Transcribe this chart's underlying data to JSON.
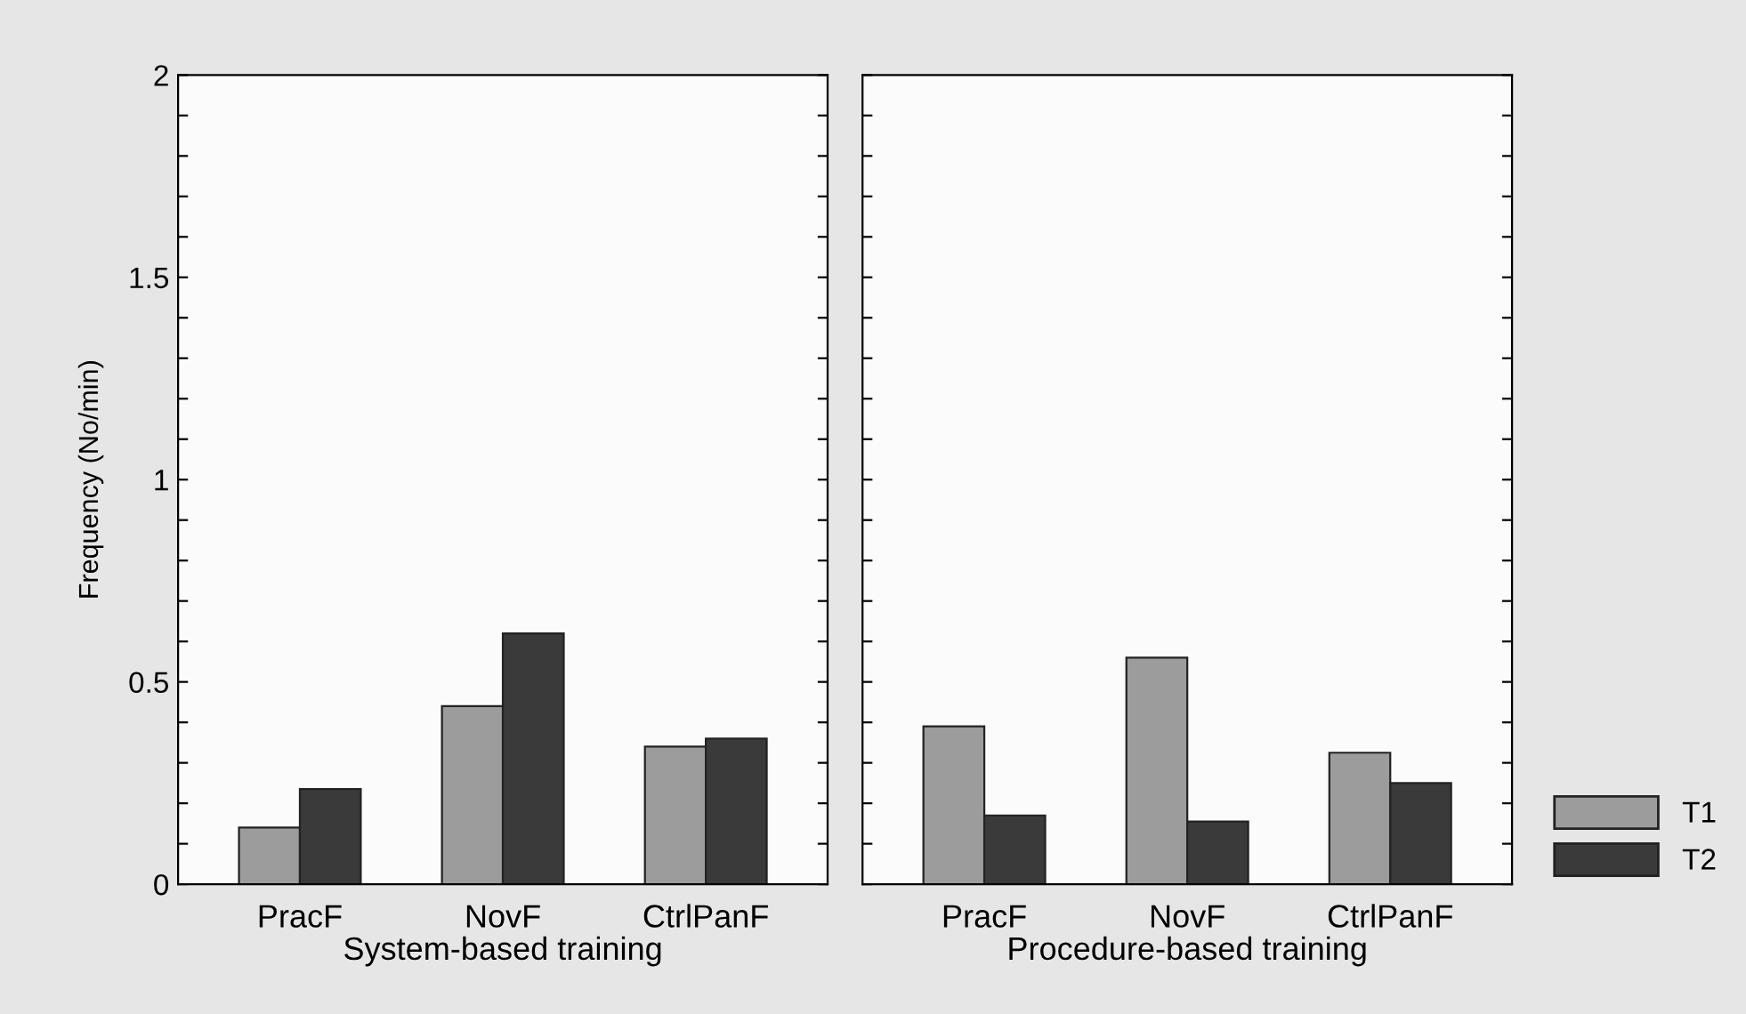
{
  "chart_data": [
    {
      "type": "bar",
      "categories": [
        "PracF",
        "NovF",
        "CtrlPanF"
      ],
      "xlabel": "System-based training",
      "ylabel": "Frequency (No/min)",
      "series": [
        {
          "name": "T1",
          "color": "#9c9c9c",
          "values": [
            0.14,
            0.44,
            0.34
          ]
        },
        {
          "name": "T2",
          "color": "#3a3a3a",
          "values": [
            0.235,
            0.62,
            0.36
          ]
        }
      ],
      "ylim": [
        0,
        2
      ],
      "yticks": [
        0,
        {
          "value": 0.1,
          "label": null
        },
        {
          "value": 0.2,
          "label": null
        },
        {
          "value": 0.3,
          "label": null
        },
        {
          "value": 0.4,
          "label": null
        },
        0.5,
        {
          "value": 0.6,
          "label": null
        },
        {
          "value": 0.7,
          "label": null
        },
        {
          "value": 0.8,
          "label": null
        },
        {
          "value": 0.9,
          "label": null
        },
        1,
        {
          "value": 1.1,
          "label": null
        },
        {
          "value": 1.2,
          "label": null
        },
        {
          "value": 1.3,
          "label": null
        },
        {
          "value": 1.4,
          "label": null
        },
        1.5,
        {
          "value": 1.6,
          "label": null
        },
        {
          "value": 1.7,
          "label": null
        },
        {
          "value": 1.8,
          "label": null
        },
        {
          "value": 1.9,
          "label": null
        },
        2
      ],
      "grid": false,
      "legend": "bottom right"
    },
    {
      "type": "bar",
      "categories": [
        "PracF",
        "NovF",
        "CtrlPanF"
      ],
      "xlabel": "Procedure-based training",
      "series": [
        {
          "color": "#9c9c9c",
          "values": [
            0.39,
            0.56,
            0.325
          ]
        },
        {
          "color": "#3a3a3a",
          "values": [
            0.17,
            0.155,
            0.25
          ]
        }
      ],
      "ylim": [
        0,
        2
      ],
      "yticks": [
        0,
        {
          "value": 0.1,
          "label": null
        },
        {
          "value": 0.2,
          "label": null
        },
        {
          "value": 0.3,
          "label": null
        },
        {
          "value": 0.4,
          "label": null
        },
        0.5,
        {
          "value": 0.6,
          "label": null
        },
        {
          "value": 0.7,
          "label": null
        },
        {
          "value": 0.8,
          "label": null
        },
        {
          "value": 0.9,
          "label": null
        },
        1,
        {
          "value": 1.1,
          "label": null
        },
        {
          "value": 1.2,
          "label": null
        },
        {
          "value": 1.3,
          "label": null
        },
        {
          "value": 1.4,
          "label": null
        },
        1.5,
        {
          "value": 1.6,
          "label": null
        },
        {
          "value": 1.7,
          "label": null
        },
        {
          "value": 1.8,
          "label": null
        },
        {
          "value": 1.9,
          "label": null
        },
        2
      ],
      "tick_labels": "x",
      "grid": false
    }
  ]
}
